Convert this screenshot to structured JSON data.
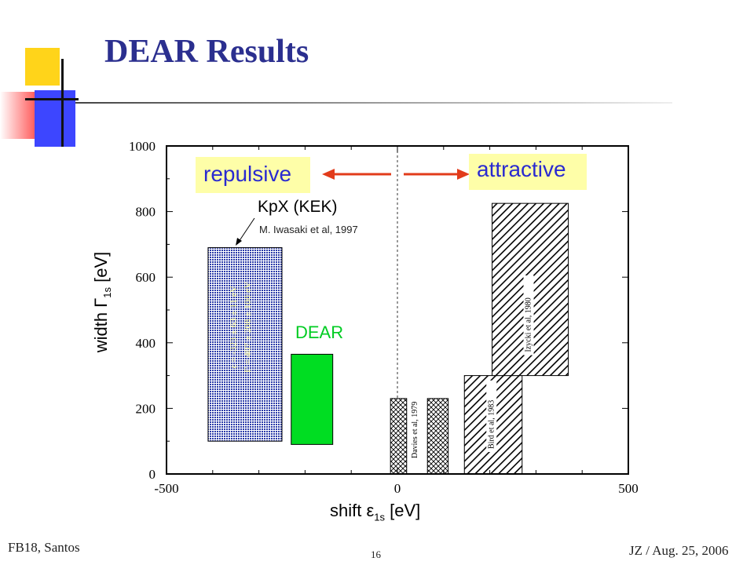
{
  "slide": {
    "title": "DEAR Results",
    "footer_left": "FB18, Santos",
    "page_number": "16",
    "footer_right": "JZ / Aug. 25, 2006"
  },
  "chart_data": {
    "type": "bar",
    "xlabel_main": "shift ε",
    "xlabel_sub": "1s",
    "xlabel_unit": "[eV]",
    "ylabel_main": "width Γ",
    "ylabel_sub": "1s",
    "ylabel_unit": "[eV]",
    "xlim": [
      -500,
      500
    ],
    "ylim": [
      0,
      1000
    ],
    "x_ticks": [
      "-500",
      "0",
      "500"
    ],
    "y_ticks": [
      "0",
      "200",
      "400",
      "600",
      "800",
      "1000"
    ],
    "reference_line_x": 0,
    "measurements": [
      {
        "id": "kpx",
        "x_range": [
          -410,
          -250
        ],
        "y_range": [
          100,
          690
        ],
        "pattern": "dots",
        "color": "#2a3aa8",
        "inner_text_1": "ε = -323 ± 63 ± 11 eV",
        "inner_text_2": "Γ = 407 ± 208 ± 100 eV"
      },
      {
        "id": "dear",
        "x_range": [
          -230,
          -140
        ],
        "y_range": [
          90,
          365
        ],
        "pattern": "solid",
        "color": "#00dd22"
      },
      {
        "id": "davies-a",
        "x_range": [
          -15,
          20
        ],
        "y_range": [
          0,
          230
        ],
        "pattern": "crosshatch",
        "color": "#000000",
        "side_label": "Davies et al, 1979"
      },
      {
        "id": "davies-b",
        "x_range": [
          65,
          110
        ],
        "y_range": [
          0,
          230
        ],
        "pattern": "crosshatch",
        "color": "#000000"
      },
      {
        "id": "bird",
        "x_range": [
          145,
          270
        ],
        "y_range": [
          0,
          300
        ],
        "pattern": "diagonal",
        "color": "#000000",
        "side_label": "Bird et al, 1983"
      },
      {
        "id": "izycki",
        "x_range": [
          205,
          370
        ],
        "y_range": [
          300,
          825
        ],
        "pattern": "diagonal",
        "color": "#000000",
        "side_label": "Izycki et al, 1980"
      }
    ],
    "annotations": {
      "repulsive": "repulsive",
      "attractive": "attractive",
      "kpx_title": "KpX (KEK)",
      "kpx_ref": "M. Iwasaki et al, 1997",
      "dear_label": "DEAR"
    },
    "colors": {
      "repulsive": "#2a2ad0",
      "attractive": "#2a2ad0",
      "arrow": "#e23b1a",
      "dear_label": "#00cc22",
      "box_fill": "#fefea8"
    }
  }
}
